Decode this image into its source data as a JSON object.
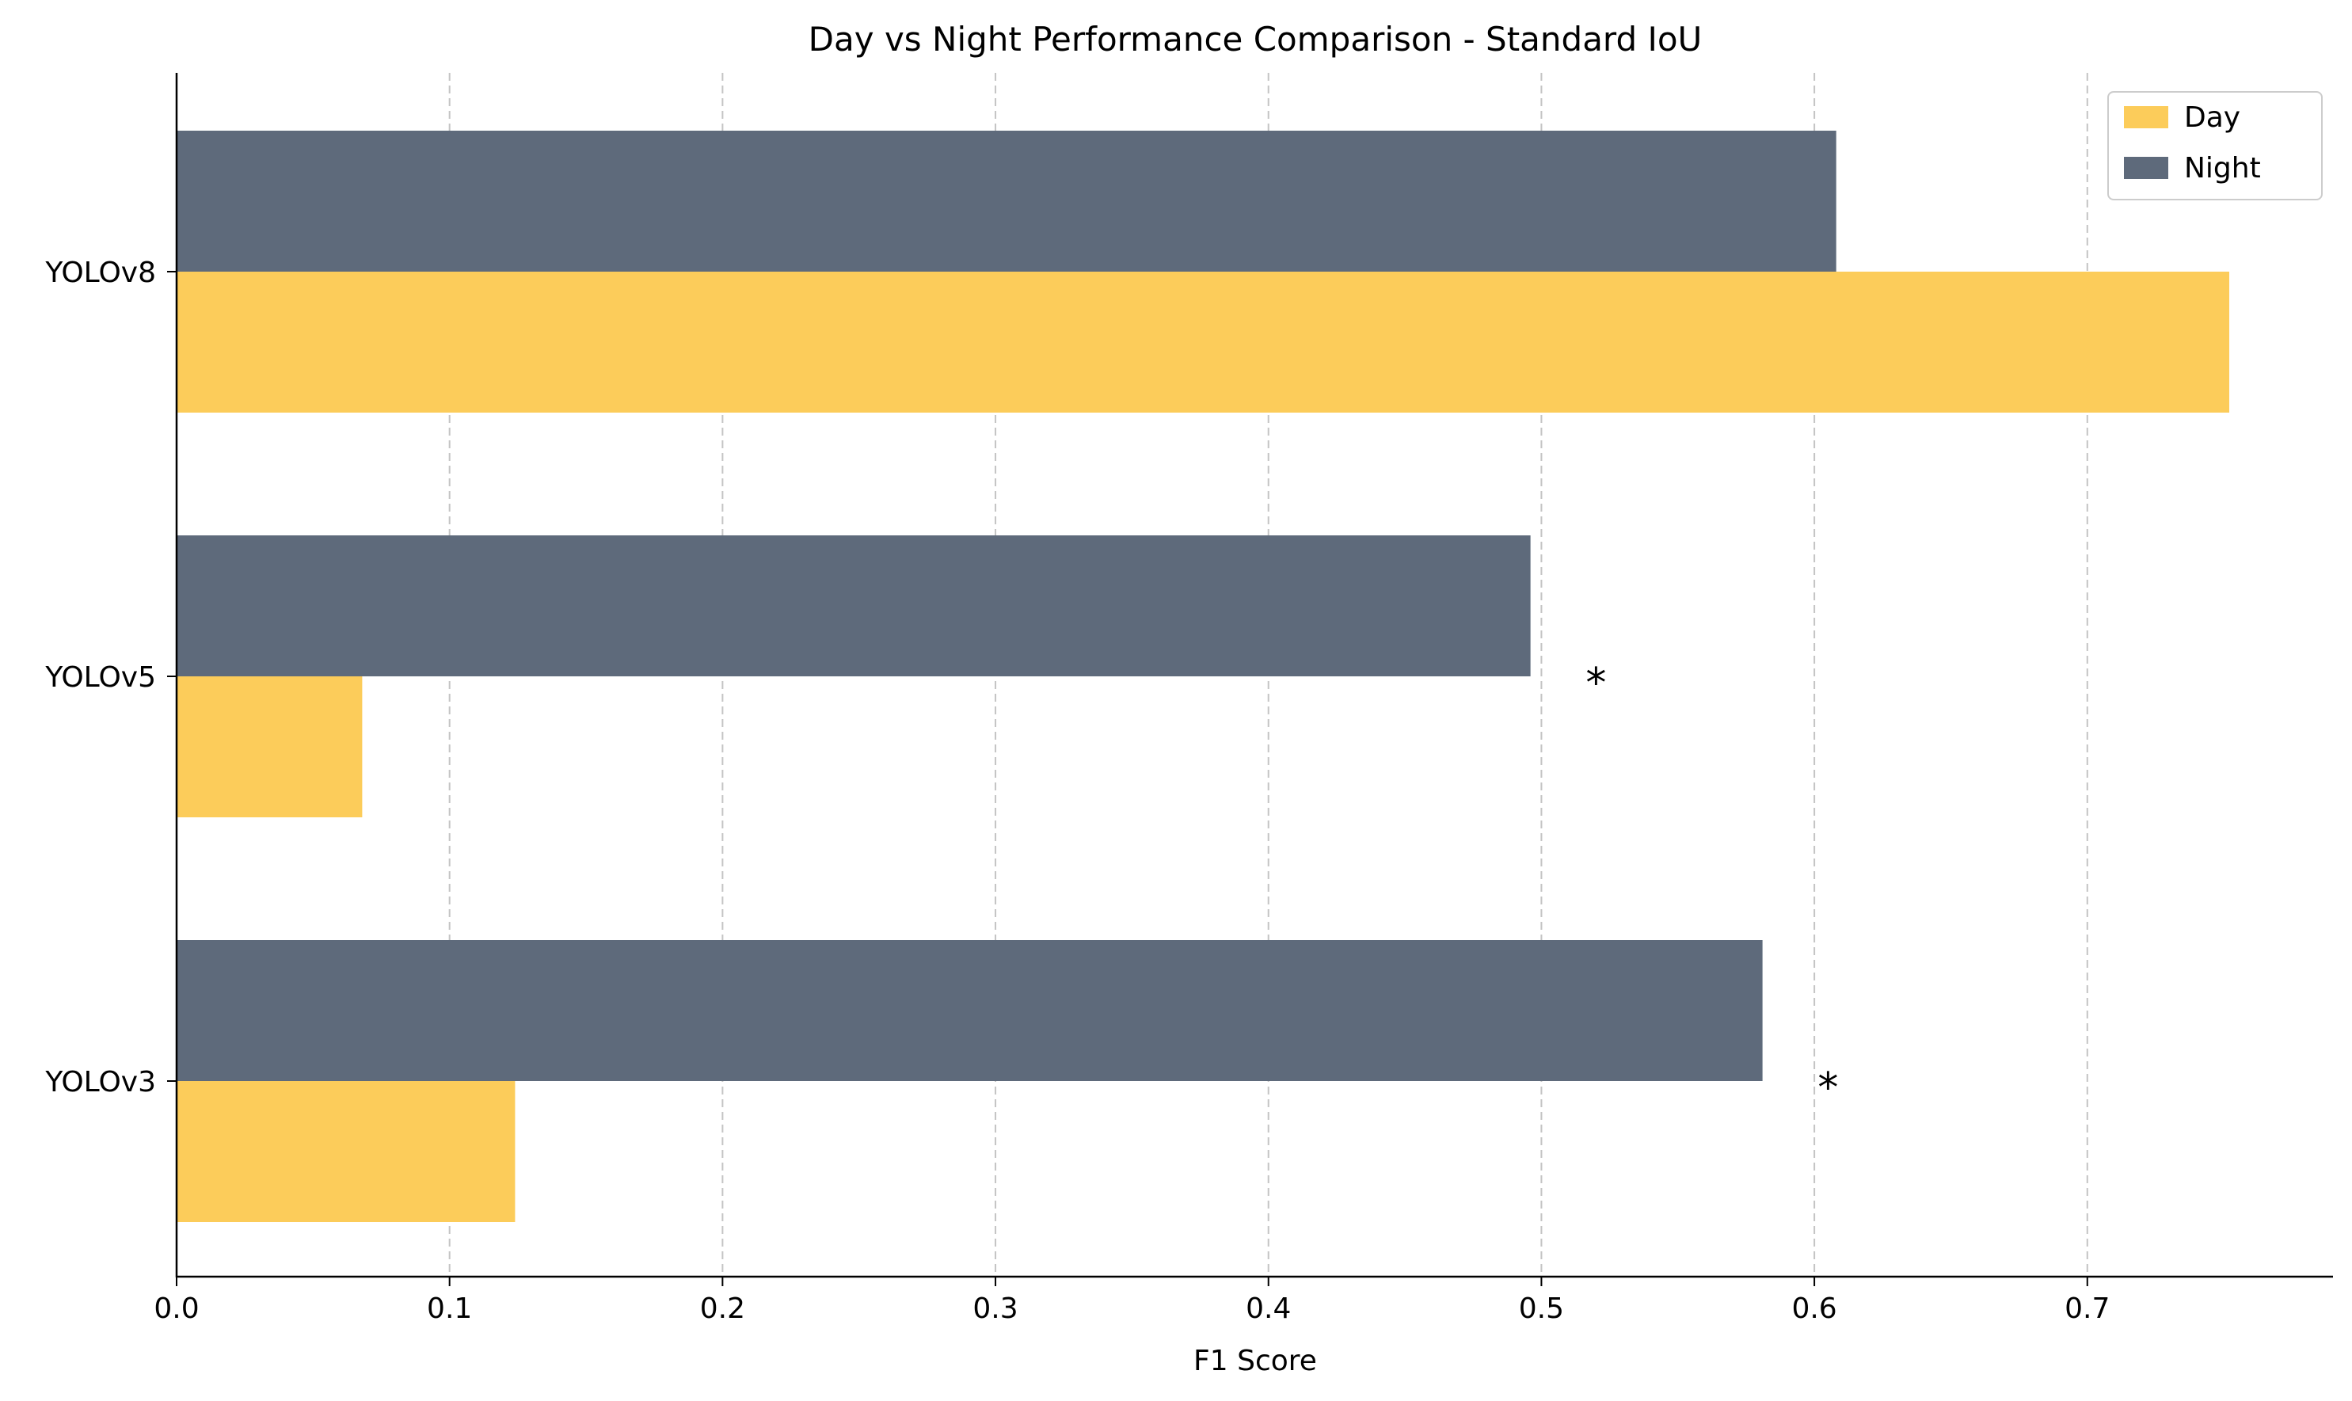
{
  "chart_data": {
    "type": "bar",
    "orientation": "horizontal",
    "title": "Day vs Night Performance Comparison - Standard IoU",
    "xlabel": "F1 Score",
    "ylabel": "",
    "xlim": [
      0.0,
      0.79
    ],
    "xticks": [
      "0.0",
      "0.1",
      "0.2",
      "0.3",
      "0.4",
      "0.5",
      "0.6",
      "0.7"
    ],
    "grid": "x-axis dashed",
    "legend_position": "top-right",
    "categories": [
      "YOLOv8",
      "YOLOv5",
      "YOLOv3"
    ],
    "series": [
      {
        "name": "Day",
        "color": "#FCCC5A",
        "values": [
          0.752,
          0.068,
          0.124
        ]
      },
      {
        "name": "Night",
        "color": "#5E6A7B",
        "values": [
          0.608,
          0.496,
          0.581
        ]
      }
    ],
    "annotations": [
      {
        "category": "YOLOv8",
        "text": ""
      },
      {
        "category": "YOLOv5",
        "text": "*"
      },
      {
        "category": "YOLOv3",
        "text": "*"
      }
    ]
  }
}
